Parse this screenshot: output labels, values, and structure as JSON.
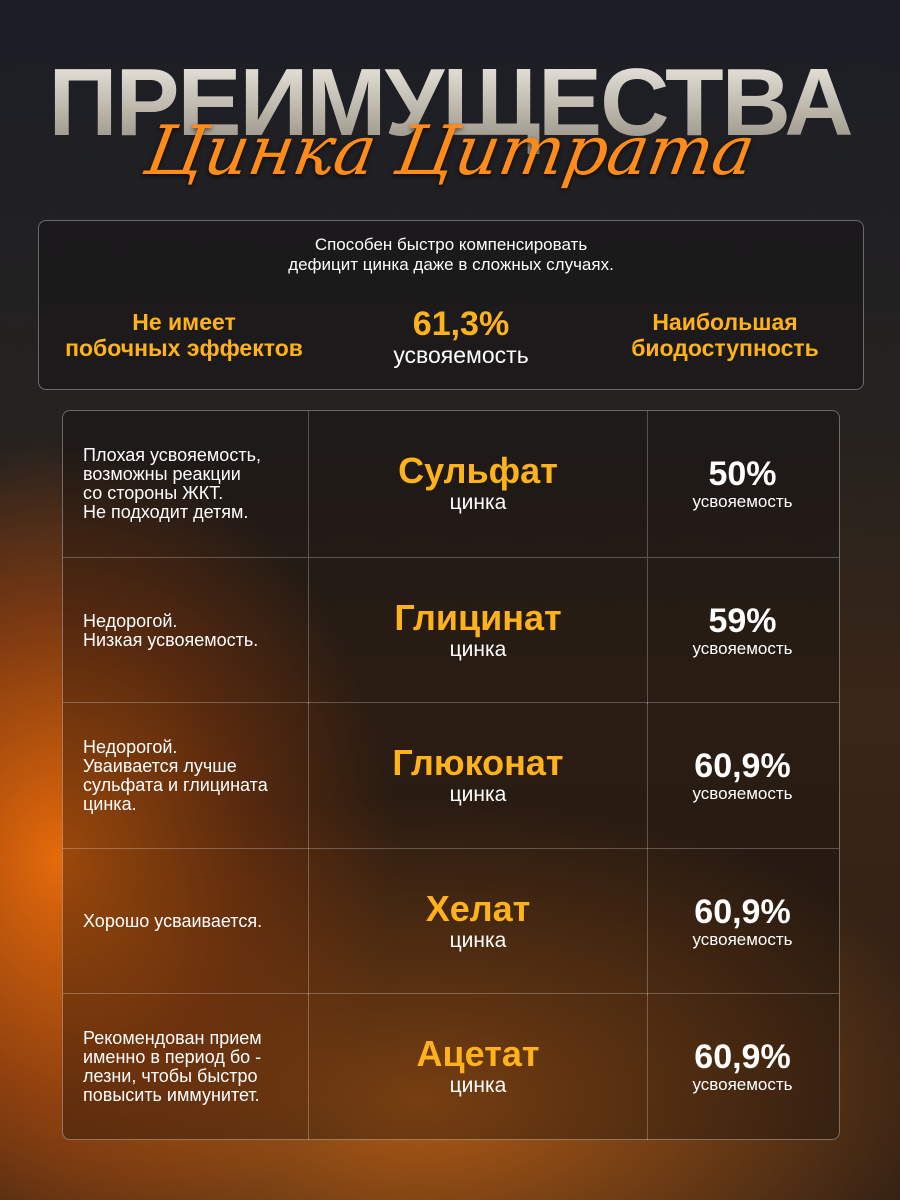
{
  "header": {
    "title": "ПРЕИМУЩЕСТВА",
    "subtitle": "Цинка Цитрата"
  },
  "intro": {
    "text": "Способен быстро компенсировать\nдефицит цинка даже в сложных случаях.",
    "features": [
      {
        "title": "Не имеет\nпобочных эффектов"
      },
      {
        "title": "61,3%",
        "caption": "усвояемость"
      },
      {
        "title": "Наибольшая\nбиодоступность"
      }
    ]
  },
  "table": {
    "rows": [
      {
        "description": "Плохая усвояемость,\nвозможны реакции\nсо стороны ЖКТ.\nНе подходит детям.",
        "name": "Сульфат",
        "sub": "цинка",
        "percent": "50%",
        "caption": "усвояемость"
      },
      {
        "description": "Недорогой.\nНизкая усвояемость.",
        "name": "Глицинат",
        "sub": "цинка",
        "percent": "59%",
        "caption": "усвояемость"
      },
      {
        "description": "Недорогой.\nУваивается лучше\nсульфата и глицината\nцинка.",
        "name": "Глюконат",
        "sub": "цинка",
        "percent": "60,9%",
        "caption": "усвояемость"
      },
      {
        "description": "Хорошо усваивается.",
        "name": "Хелат",
        "sub": "цинка",
        "percent": "60,9%",
        "caption": "усвояемость"
      },
      {
        "description": "Рекомендован прием\nименно в период бо -\nлезни, чтобы быстро\nповысить иммунитет.",
        "name": "Ацетат",
        "sub": "цинка",
        "percent": "60,9%",
        "caption": "усвояемость"
      }
    ]
  }
}
